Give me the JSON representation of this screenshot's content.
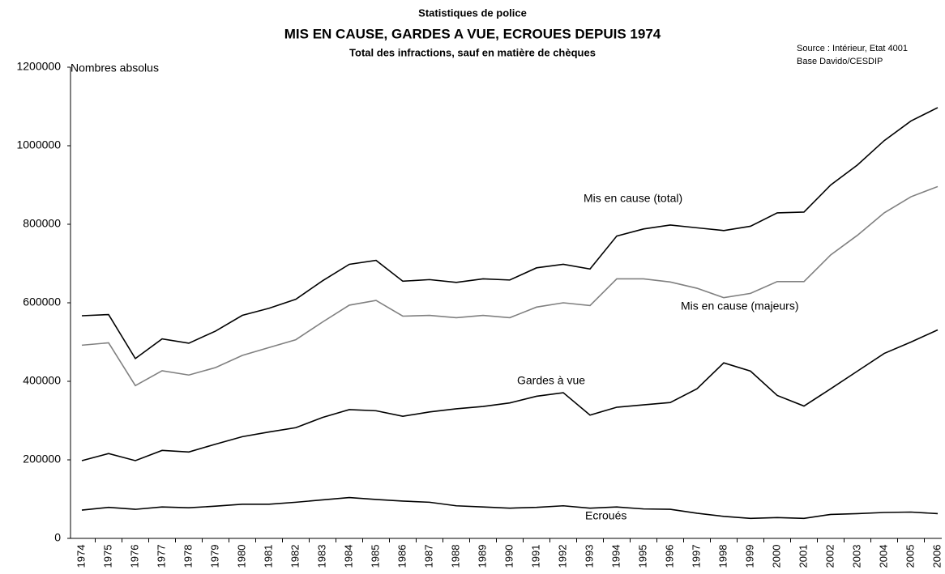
{
  "chart_data": {
    "type": "line",
    "supertitle": "Statistiques de police",
    "title": "MIS EN CAUSE, GARDES A VUE, ECROUES DEPUIS 1974",
    "subtitle": "Total des infractions, sauf en matière de chèques",
    "source": [
      "Source : Intérieur, Etat 4001",
      "Base Davido/CESDIP"
    ],
    "ylabel": "Nombres absolus",
    "categories": [
      "1974",
      "1975",
      "1976",
      "1977",
      "1978",
      "1979",
      "1980",
      "1981",
      "1982",
      "1983",
      "1984",
      "1985",
      "1986",
      "1987",
      "1988",
      "1989",
      "1990",
      "1991",
      "1992",
      "1993",
      "1994",
      "1995",
      "1996",
      "1997",
      "1998",
      "1999",
      "2000",
      "2001",
      "2002",
      "2003",
      "2004",
      "2005",
      "2006"
    ],
    "series": [
      {
        "name": "Mis en cause (total)",
        "color": "#000000",
        "values": [
          567000,
          570000,
          458000,
          508000,
          497000,
          528000,
          568000,
          586000,
          609000,
          656000,
          698000,
          708000,
          655000,
          659000,
          652000,
          661000,
          658000,
          689000,
          698000,
          686000,
          770000,
          788000,
          798000,
          791000,
          784000,
          795000,
          829000,
          831000,
          900000,
          951000,
          1013000,
          1063000,
          1097000
        ]
      },
      {
        "name": "Mis en cause (majeurs)",
        "color": "#808080",
        "values": [
          492000,
          498000,
          389000,
          427000,
          416000,
          435000,
          466000,
          486000,
          506000,
          551000,
          594000,
          606000,
          566000,
          568000,
          562000,
          568000,
          562000,
          589000,
          600000,
          593000,
          661000,
          661000,
          653000,
          637000,
          613000,
          624000,
          654000,
          654000,
          722000,
          772000,
          829000,
          870000,
          896000
        ]
      },
      {
        "name": "Gardes à vue",
        "color": "#000000",
        "values": [
          198000,
          216000,
          198000,
          224000,
          220000,
          240000,
          259000,
          271000,
          282000,
          308000,
          328000,
          325000,
          311000,
          322000,
          330000,
          336000,
          345000,
          362000,
          371000,
          314000,
          334000,
          340000,
          346000,
          381000,
          447000,
          426000,
          364000,
          337000,
          381000,
          426000,
          471000,
          500000,
          531000
        ]
      },
      {
        "name": "Ecroués",
        "color": "#000000",
        "values": [
          72000,
          79000,
          74000,
          80000,
          78000,
          82000,
          87000,
          87000,
          92000,
          98000,
          104000,
          99000,
          95000,
          92000,
          83000,
          80000,
          77000,
          79000,
          83000,
          77000,
          80000,
          75000,
          74000,
          64000,
          56000,
          51000,
          53000,
          51000,
          61000,
          63000,
          66000,
          67000,
          63000
        ]
      }
    ],
    "ylim": [
      0,
      1200000
    ],
    "yticks": [
      0,
      200000,
      400000,
      600000,
      800000,
      1000000,
      1200000
    ],
    "grid": false
  }
}
